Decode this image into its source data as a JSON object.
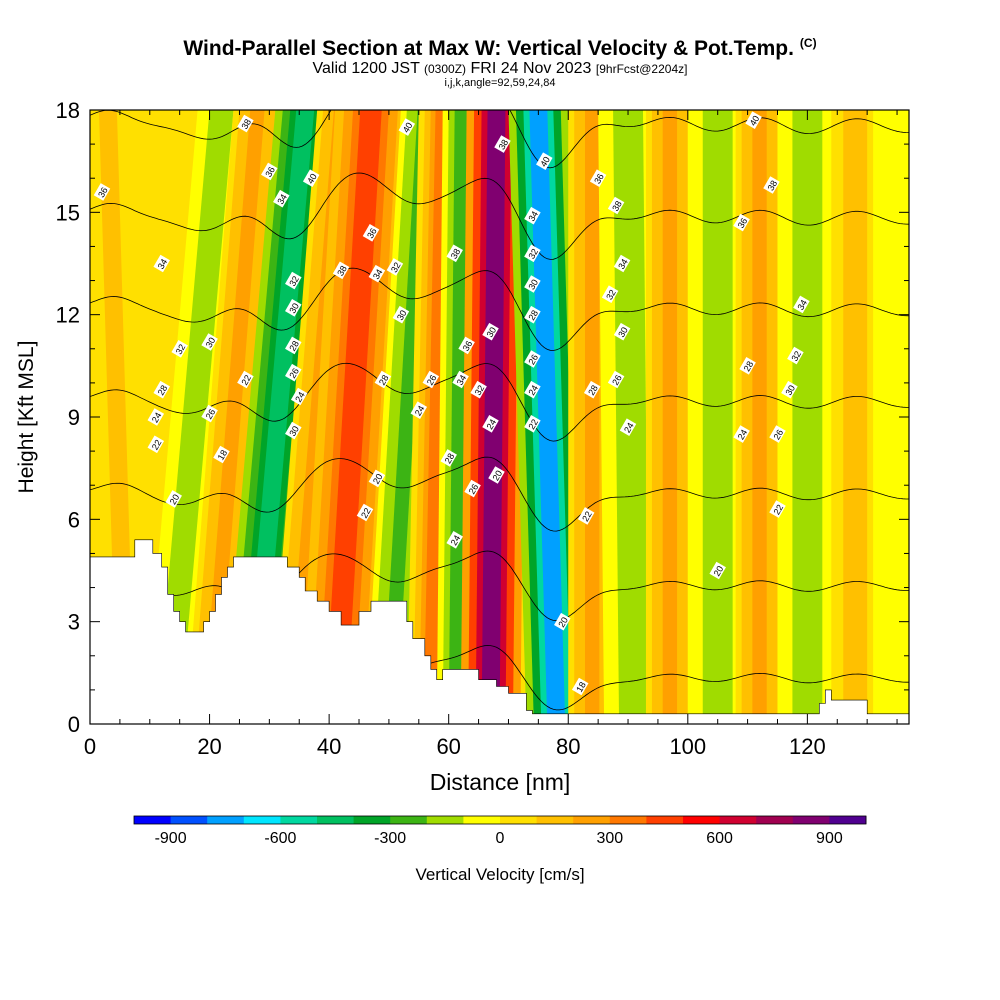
{
  "title": "Wind-Parallel Section at Max W: Vertical Velocity & Pot.Temp.",
  "title_tag": "(C)",
  "subtitle": {
    "valid": "Valid 1200 JST",
    "utc": "(0300Z)",
    "date": "FRI 24 Nov 2023",
    "fcst": "[9hrFcst@2204z]"
  },
  "angle_label": "i,j,k,angle=92,59,24,84",
  "chart_data": {
    "type": "heatmap",
    "xlabel": "Distance [nm]",
    "ylabel": "Height [Kft MSL]",
    "xlim": [
      0,
      137
    ],
    "ylim": [
      0,
      18
    ],
    "x_ticks": [
      0,
      20,
      40,
      60,
      80,
      100,
      120
    ],
    "y_ticks": [
      0,
      3,
      6,
      9,
      12,
      15,
      18
    ],
    "colorbar": {
      "label": "Vertical Velocity [cm/s]",
      "ticks": [
        -900,
        -600,
        -300,
        0,
        300,
        600,
        900
      ],
      "min": -1000,
      "max": 1000,
      "colors": [
        "#0000ff",
        "#0050ff",
        "#00a0ff",
        "#00e6ff",
        "#00d8a0",
        "#00c060",
        "#00a428",
        "#3cb414",
        "#a0dc00",
        "#ffff00",
        "#ffe000",
        "#ffc000",
        "#ffa000",
        "#ff7800",
        "#ff4000",
        "#ff0000",
        "#d00030",
        "#a00050",
        "#800070",
        "#500090"
      ]
    },
    "velocity_bands": [
      {
        "x_bottom": 6,
        "x_top": 3,
        "width": 3,
        "value": 150
      },
      {
        "x_bottom": 13,
        "x_top": 22,
        "width": 4,
        "value": -200
      },
      {
        "x_bottom": 20,
        "x_top": 28,
        "width": 4,
        "value": 250
      },
      {
        "x_bottom": 27,
        "x_top": 36,
        "width": 5,
        "value": -450
      },
      {
        "x_bottom": 34,
        "x_top": 42,
        "width": 4,
        "value": 200
      },
      {
        "x_bottom": 41,
        "x_top": 47,
        "width": 6,
        "value": 450
      },
      {
        "x_bottom": 50,
        "x_top": 56,
        "width": 4,
        "value": -250
      },
      {
        "x_bottom": 57,
        "x_top": 59,
        "width": 4,
        "value": 300
      },
      {
        "x_bottom": 62,
        "x_top": 63,
        "width": 4,
        "value": -300
      },
      {
        "x_bottom": 67,
        "x_top": 68,
        "width": 5,
        "value": 800
      },
      {
        "x_bottom": 78,
        "x_top": 75,
        "width": 5,
        "value": -750
      },
      {
        "x_bottom": 84,
        "x_top": 84,
        "width": 4,
        "value": 250
      },
      {
        "x_bottom": 91,
        "x_top": 90,
        "width": 5,
        "value": -150
      },
      {
        "x_bottom": 97,
        "x_top": 97,
        "width": 4,
        "value": 200
      },
      {
        "x_bottom": 105,
        "x_top": 105,
        "width": 5,
        "value": -150
      },
      {
        "x_bottom": 112,
        "x_top": 112,
        "width": 4,
        "value": 200
      },
      {
        "x_bottom": 120,
        "x_top": 120,
        "width": 5,
        "value": -150
      },
      {
        "x_bottom": 128,
        "x_top": 128,
        "width": 4,
        "value": 150
      },
      {
        "x_bottom": 135,
        "x_top": 135,
        "width": 4,
        "value": -100
      }
    ],
    "terrain": [
      [
        0,
        4.9
      ],
      [
        7.5,
        4.9
      ],
      [
        7.5,
        5.4
      ],
      [
        10.5,
        5.4
      ],
      [
        10.5,
        5.0
      ],
      [
        12,
        5.0
      ],
      [
        12,
        4.6
      ],
      [
        13,
        4.6
      ],
      [
        13,
        3.8
      ],
      [
        14,
        3.8
      ],
      [
        14,
        3.3
      ],
      [
        15,
        3.3
      ],
      [
        15,
        3.0
      ],
      [
        16,
        3.0
      ],
      [
        16,
        2.7
      ],
      [
        19,
        2.7
      ],
      [
        19,
        3.0
      ],
      [
        20,
        3.0
      ],
      [
        20,
        3.3
      ],
      [
        21,
        3.3
      ],
      [
        21,
        3.8
      ],
      [
        22,
        3.8
      ],
      [
        22,
        4.3
      ],
      [
        23,
        4.3
      ],
      [
        23,
        4.6
      ],
      [
        24,
        4.6
      ],
      [
        24,
        4.9
      ],
      [
        33,
        4.9
      ],
      [
        33,
        4.6
      ],
      [
        35,
        4.6
      ],
      [
        35,
        4.3
      ],
      [
        36,
        4.3
      ],
      [
        36,
        3.9
      ],
      [
        38,
        3.9
      ],
      [
        38,
        3.6
      ],
      [
        40,
        3.6
      ],
      [
        40,
        3.3
      ],
      [
        42,
        3.3
      ],
      [
        42,
        2.9
      ],
      [
        45,
        2.9
      ],
      [
        45,
        3.3
      ],
      [
        47,
        3.3
      ],
      [
        47,
        3.6
      ],
      [
        53,
        3.6
      ],
      [
        53,
        3.0
      ],
      [
        54,
        3.0
      ],
      [
        54,
        2.5
      ],
      [
        56,
        2.5
      ],
      [
        56,
        2.0
      ],
      [
        57,
        2.0
      ],
      [
        57,
        1.6
      ],
      [
        58,
        1.6
      ],
      [
        58,
        1.3
      ],
      [
        59,
        1.3
      ],
      [
        59,
        1.6
      ],
      [
        65,
        1.6
      ],
      [
        65,
        1.3
      ],
      [
        68,
        1.3
      ],
      [
        68,
        1.1
      ],
      [
        70,
        1.1
      ],
      [
        70,
        0.9
      ],
      [
        73,
        0.9
      ],
      [
        73,
        0.4
      ],
      [
        74,
        0.4
      ],
      [
        74,
        0.3
      ],
      [
        122,
        0.3
      ],
      [
        122,
        0.6
      ],
      [
        123,
        0.6
      ],
      [
        123,
        1.0
      ],
      [
        124,
        1.0
      ],
      [
        124,
        0.7
      ],
      [
        130,
        0.7
      ],
      [
        130,
        0.3
      ],
      [
        137,
        0.3
      ],
      [
        137,
        0
      ]
    ],
    "theta_contours": [
      16,
      18,
      20,
      22,
      24,
      26,
      28,
      30,
      32,
      34,
      36,
      38,
      40
    ],
    "contour_labels": [
      {
        "v": "38",
        "x": 26,
        "y": 17.6
      },
      {
        "v": "36",
        "x": 30,
        "y": 16.2
      },
      {
        "v": "34",
        "x": 32,
        "y": 15.4
      },
      {
        "v": "40",
        "x": 37,
        "y": 16.0
      },
      {
        "v": "36",
        "x": 2,
        "y": 15.6
      },
      {
        "v": "34",
        "x": 12,
        "y": 13.5
      },
      {
        "v": "32",
        "x": 15,
        "y": 11.0
      },
      {
        "v": "30",
        "x": 20,
        "y": 11.2
      },
      {
        "v": "28",
        "x": 12,
        "y": 9.8
      },
      {
        "v": "24",
        "x": 11,
        "y": 9.0
      },
      {
        "v": "22",
        "x": 11,
        "y": 8.2
      },
      {
        "v": "20",
        "x": 14,
        "y": 6.6
      },
      {
        "v": "26",
        "x": 20,
        "y": 9.1
      },
      {
        "v": "18",
        "x": 22,
        "y": 7.9
      },
      {
        "v": "22",
        "x": 26,
        "y": 10.1
      },
      {
        "v": "32",
        "x": 34,
        "y": 13.0
      },
      {
        "v": "30",
        "x": 34,
        "y": 12.2
      },
      {
        "v": "28",
        "x": 34,
        "y": 11.1
      },
      {
        "v": "26",
        "x": 34,
        "y": 10.3
      },
      {
        "v": "24",
        "x": 35,
        "y": 9.6
      },
      {
        "v": "30",
        "x": 34,
        "y": 8.6
      },
      {
        "v": "38",
        "x": 42,
        "y": 13.3
      },
      {
        "v": "36",
        "x": 47,
        "y": 14.4
      },
      {
        "v": "34",
        "x": 48,
        "y": 13.2
      },
      {
        "v": "32",
        "x": 51,
        "y": 13.4
      },
      {
        "v": "30",
        "x": 52,
        "y": 12.0
      },
      {
        "v": "28",
        "x": 49,
        "y": 10.1
      },
      {
        "v": "26",
        "x": 57,
        "y": 10.1
      },
      {
        "v": "24",
        "x": 55,
        "y": 9.2
      },
      {
        "v": "20",
        "x": 48,
        "y": 7.2
      },
      {
        "v": "22",
        "x": 46,
        "y": 6.2
      },
      {
        "v": "40",
        "x": 53,
        "y": 17.5
      },
      {
        "v": "38",
        "x": 61,
        "y": 13.8
      },
      {
        "v": "36",
        "x": 63,
        "y": 11.1
      },
      {
        "v": "34",
        "x": 62,
        "y": 10.1
      },
      {
        "v": "32",
        "x": 65,
        "y": 9.8
      },
      {
        "v": "30",
        "x": 67,
        "y": 11.5
      },
      {
        "v": "28",
        "x": 60,
        "y": 7.8
      },
      {
        "v": "26",
        "x": 64,
        "y": 6.9
      },
      {
        "v": "24",
        "x": 61,
        "y": 5.4
      },
      {
        "v": "24",
        "x": 67,
        "y": 8.8
      },
      {
        "v": "20",
        "x": 68,
        "y": 7.3
      },
      {
        "v": "38",
        "x": 69,
        "y": 17.0
      },
      {
        "v": "40",
        "x": 76,
        "y": 16.5
      },
      {
        "v": "34",
        "x": 74,
        "y": 14.9
      },
      {
        "v": "32",
        "x": 74,
        "y": 13.8
      },
      {
        "v": "30",
        "x": 74,
        "y": 12.9
      },
      {
        "v": "28",
        "x": 74,
        "y": 12.0
      },
      {
        "v": "26",
        "x": 74,
        "y": 10.7
      },
      {
        "v": "24",
        "x": 74,
        "y": 9.8
      },
      {
        "v": "22",
        "x": 74,
        "y": 8.8
      },
      {
        "v": "22",
        "x": 83,
        "y": 6.1
      },
      {
        "v": "20",
        "x": 79,
        "y": 3.0
      },
      {
        "v": "18",
        "x": 82,
        "y": 1.1
      },
      {
        "v": "36",
        "x": 85,
        "y": 16.0
      },
      {
        "v": "38",
        "x": 88,
        "y": 15.2
      },
      {
        "v": "34",
        "x": 89,
        "y": 13.5
      },
      {
        "v": "32",
        "x": 87,
        "y": 12.6
      },
      {
        "v": "30",
        "x": 89,
        "y": 11.5
      },
      {
        "v": "28",
        "x": 84,
        "y": 9.8
      },
      {
        "v": "26",
        "x": 88,
        "y": 10.1
      },
      {
        "v": "24",
        "x": 90,
        "y": 8.7
      },
      {
        "v": "40",
        "x": 111,
        "y": 17.7
      },
      {
        "v": "38",
        "x": 114,
        "y": 15.8
      },
      {
        "v": "36",
        "x": 109,
        "y": 14.7
      },
      {
        "v": "34",
        "x": 119,
        "y": 12.3
      },
      {
        "v": "32",
        "x": 118,
        "y": 10.8
      },
      {
        "v": "30",
        "x": 117,
        "y": 9.8
      },
      {
        "v": "28",
        "x": 110,
        "y": 10.5
      },
      {
        "v": "26",
        "x": 115,
        "y": 8.5
      },
      {
        "v": "24",
        "x": 109,
        "y": 8.5
      },
      {
        "v": "22",
        "x": 115,
        "y": 6.3
      },
      {
        "v": "20",
        "x": 105,
        "y": 4.5
      }
    ]
  }
}
